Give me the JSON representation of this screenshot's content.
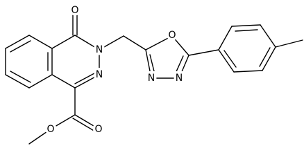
{
  "labels": [
    "O",
    "N",
    "N",
    "O",
    "N",
    "N",
    "O",
    "O"
  ]
}
